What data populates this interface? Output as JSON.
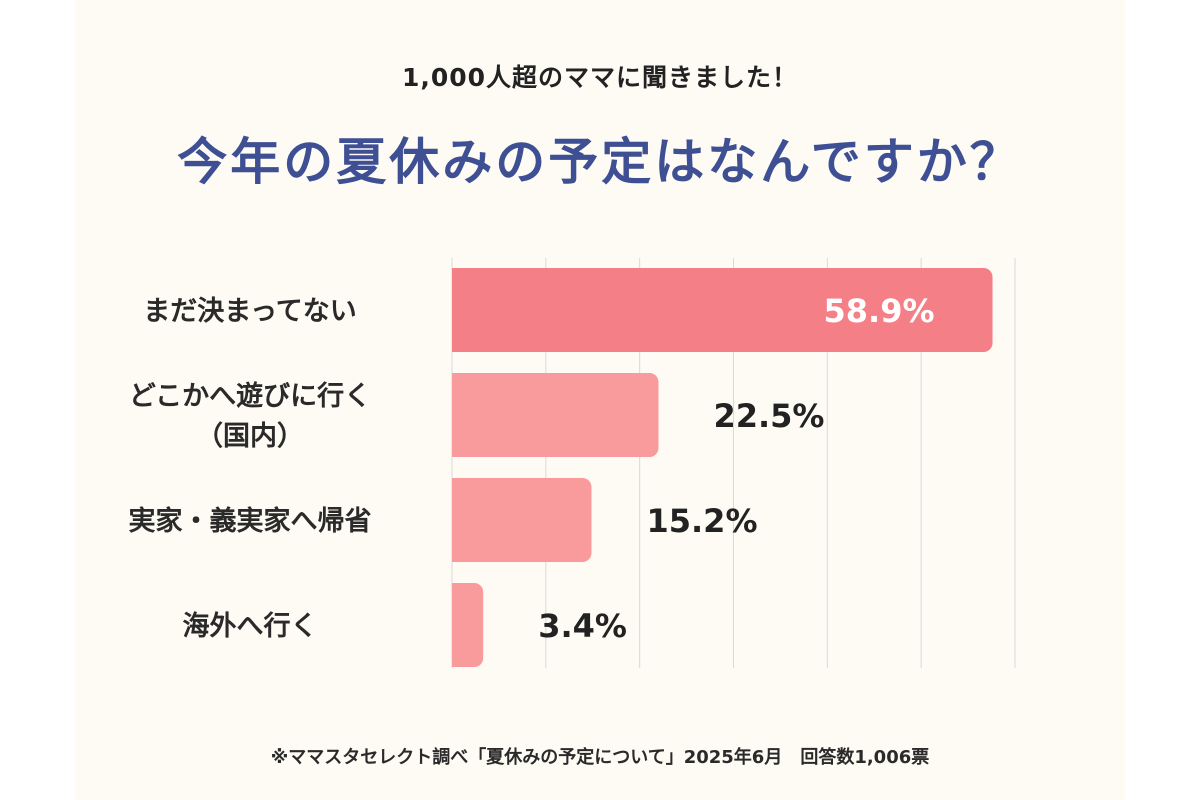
{
  "subtitle": "1,000人超のママに聞きました！",
  "title": "今年の夏休みの予定はなんですか？",
  "footnote": "※ママスタセレクト調べ「夏休みの予定について」2025年6月　回答数1,006票",
  "colors": {
    "highlight_bar": "#f47f87",
    "bar": "#f99a9c",
    "title": "#3e4f93",
    "gridline": "#d9d9d9",
    "inside_label": "#ffffff",
    "outside_label": "#222222"
  },
  "chart_data": {
    "type": "bar",
    "orientation": "horizontal",
    "title": "今年の夏休みの予定はなんですか？",
    "categories": [
      [
        "まだ決まってない"
      ],
      [
        "どこかへ遊びに行く",
        "（国内）"
      ],
      [
        "実家・義実家へ帰省"
      ],
      [
        "海外へ行く"
      ]
    ],
    "values": [
      58.9,
      22.5,
      15.2,
      3.4
    ],
    "value_labels": [
      "58.9%",
      "22.5%",
      "15.2%",
      "3.4%"
    ],
    "unit": "%",
    "xlim": [
      0,
      60
    ],
    "grid": true,
    "legend": "none"
  }
}
